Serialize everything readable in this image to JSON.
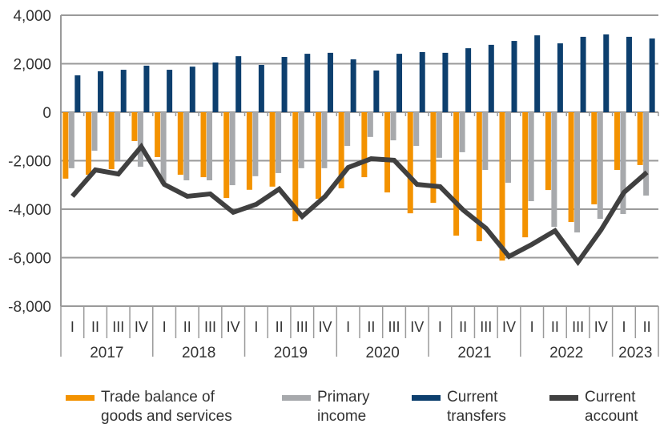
{
  "chart_data": {
    "type": "bar+line",
    "categories": [
      "I",
      "II",
      "III",
      "IV",
      "I",
      "II",
      "III",
      "IV",
      "I",
      "II",
      "III",
      "IV",
      "I",
      "II",
      "III",
      "IV",
      "I",
      "II",
      "III",
      "IV",
      "I",
      "II",
      "III",
      "IV",
      "I",
      "II"
    ],
    "years": [
      {
        "label": "2017",
        "quarters": 4
      },
      {
        "label": "2018",
        "quarters": 4
      },
      {
        "label": "2019",
        "quarters": 4
      },
      {
        "label": "2020",
        "quarters": 4
      },
      {
        "label": "2021",
        "quarters": 4
      },
      {
        "label": "2022",
        "quarters": 4
      },
      {
        "label": "2023",
        "quarters": 2
      }
    ],
    "ylim": [
      -8000,
      4000
    ],
    "yticks": [
      "4,000",
      "2,000",
      "0",
      "-2,000",
      "-4,000",
      "-6,000",
      "-8,000"
    ],
    "ytick_values": [
      4000,
      2000,
      0,
      -2000,
      -4000,
      -6000,
      -8000
    ],
    "grid": true,
    "legend_position": "bottom",
    "series": [
      {
        "name": "Trade balance of goods and services",
        "type": "bar",
        "color": "#f39200",
        "values": [
          -2740,
          -2580,
          -2350,
          -1190,
          -1850,
          -2580,
          -2680,
          -3540,
          -3200,
          -3070,
          -4500,
          -3570,
          -3140,
          -2680,
          -3310,
          -4170,
          -3740,
          -5090,
          -5320,
          -6120,
          -5160,
          -3210,
          -4530,
          -3800,
          -2380,
          -2180
        ]
      },
      {
        "name": "Primary income",
        "type": "bar",
        "color": "#a7a9ac",
        "values": [
          -2310,
          -1590,
          -1980,
          -2250,
          -2980,
          -2810,
          -2810,
          -3010,
          -2640,
          -2510,
          -2310,
          -2310,
          -1390,
          -1020,
          -1160,
          -1390,
          -1880,
          -1650,
          -2380,
          -2910,
          -3670,
          -4730,
          -4960,
          -4400,
          -4200,
          -3440
        ]
      },
      {
        "name": "Current transfers",
        "type": "bar",
        "color": "#0d3f6e",
        "values": [
          1520,
          1690,
          1750,
          1920,
          1750,
          1880,
          2050,
          2310,
          1950,
          2280,
          2410,
          2450,
          2180,
          1720,
          2410,
          2480,
          2450,
          2640,
          2780,
          2940,
          3170,
          2840,
          3110,
          3210,
          3110,
          3040
        ]
      },
      {
        "name": "Current account",
        "type": "line",
        "color": "#404040",
        "values": [
          -3470,
          -2380,
          -2550,
          -1420,
          -2980,
          -3470,
          -3370,
          -4130,
          -3800,
          -3170,
          -4300,
          -3470,
          -2280,
          -1920,
          -1980,
          -2980,
          -3070,
          -4030,
          -4790,
          -5950,
          -5450,
          -4890,
          -6180,
          -4860,
          -3310,
          -2480
        ]
      }
    ]
  },
  "legend": [
    {
      "line1": "Trade balance of",
      "line2": "goods and services"
    },
    {
      "line1": "Primary",
      "line2": "income"
    },
    {
      "line1": "Current",
      "line2": "transfers"
    },
    {
      "line1": "Current",
      "line2": "account"
    }
  ]
}
